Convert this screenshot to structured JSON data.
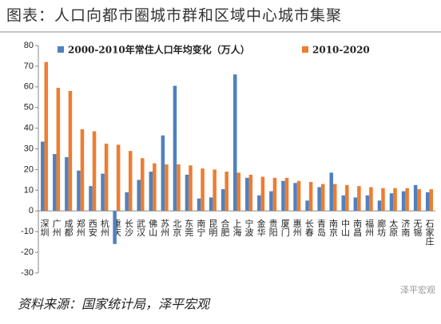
{
  "chart_data": {
    "type": "bar",
    "title": "图表：人口向都市圈城市群和区域中心城市集聚",
    "source": "资料来源：国家统计局，泽平宏观",
    "watermark": "泽平宏观",
    "categories": [
      "深圳",
      "广州",
      "成都",
      "郑州",
      "西安",
      "杭州",
      "重庆",
      "长沙",
      "武汉",
      "佛山",
      "苏州",
      "北京",
      "东莞",
      "南宁",
      "昆明",
      "合肥",
      "上海",
      "宁波",
      "金华",
      "贵阳",
      "厦门",
      "惠州",
      "长春",
      "青岛",
      "南京",
      "中山",
      "南昌",
      "福州",
      "廊坊",
      "太原",
      "济南",
      "无锡",
      "石家庄"
    ],
    "series": [
      {
        "name": "2000-2010年常住人口年均变化（万人）",
        "color": "#4f81bd",
        "values": [
          33.5,
          27.5,
          26,
          19.5,
          12,
          18,
          -16,
          9,
          15,
          19,
          36.5,
          60.5,
          17.5,
          6,
          6.5,
          10.5,
          66,
          16,
          7.5,
          9.5,
          14.5,
          13.5,
          5,
          11.5,
          18.5,
          7.5,
          6.5,
          7.5,
          5,
          8.5,
          9.5,
          12.5,
          9
        ]
      },
      {
        "name": "2010-2020",
        "color": "#ed7d31",
        "values": [
          72,
          59.5,
          58,
          39.5,
          38.5,
          32.5,
          32,
          29,
          25.5,
          23,
          22.5,
          22.5,
          22,
          20.5,
          20,
          19,
          18.5,
          17.5,
          16.5,
          16,
          16,
          14.5,
          14,
          13,
          13,
          12.5,
          12,
          11.5,
          11,
          11,
          11,
          10.5,
          10.5
        ]
      }
    ],
    "ylim": [
      -30,
      80
    ],
    "yticks": [
      -30,
      -20,
      -10,
      0,
      10,
      20,
      30,
      40,
      50,
      60,
      70,
      80
    ],
    "legend": "top",
    "grid": false
  }
}
